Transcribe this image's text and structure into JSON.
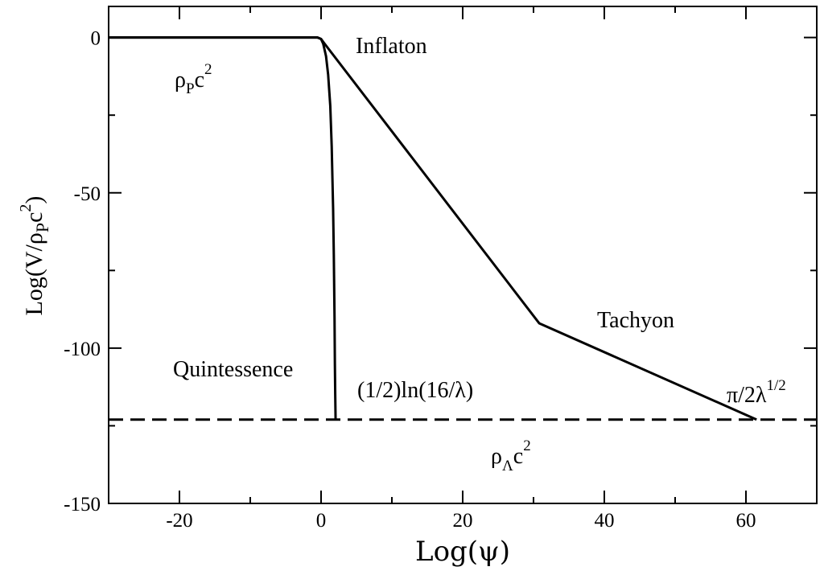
{
  "chart_data": {
    "type": "line",
    "xlabel": "Log(ψ)",
    "ylabel": {
      "base": "Log(V/ρ",
      "sub": "P",
      "mid": "c",
      "sup": "2",
      "end": ")"
    },
    "xlim": [
      -30,
      70
    ],
    "ylim": [
      -150,
      10
    ],
    "xticks": [
      -20,
      0,
      20,
      40,
      60
    ],
    "yticks": [
      0,
      -50,
      -100,
      -150
    ],
    "xtick_labels": [
      "-20",
      "0",
      "20",
      "40",
      "60"
    ],
    "ytick_labels": [
      "0",
      "-50",
      "-100",
      "-150"
    ],
    "grid": false,
    "series": [
      {
        "style": "solid",
        "x": [
          -30,
          -0.5,
          0,
          0.3,
          0.7,
          1.0,
          1.3,
          1.5,
          1.7,
          1.8,
          1.9,
          1.95,
          2.0,
          2.05
        ],
        "y": [
          0,
          0,
          -0.5,
          -2,
          -6,
          -12,
          -22,
          -35,
          -55,
          -70,
          -90,
          -105,
          -115,
          -123
        ]
      },
      {
        "style": "solid",
        "x": [
          -30,
          -0.5,
          0,
          0.5,
          30.8,
          61.5
        ],
        "y": [
          0,
          0,
          -0.5,
          -2,
          -92,
          -123
        ]
      },
      {
        "style": "dashed",
        "x": [
          -30,
          70
        ],
        "y": [
          -123,
          -123
        ]
      }
    ],
    "annotations": {
      "inflaton": "Inflaton",
      "tachyon": "Tachyon",
      "quintessence": "Quintessence",
      "ln_label": "(1/2)ln(16/λ)",
      "pi_label": {
        "base": "π/2λ",
        "sup": "1/2"
      },
      "rho_p": {
        "base": "ρ",
        "sub": "P",
        "mid": "c",
        "sup": "2"
      },
      "rho_lambda": {
        "base": "ρ",
        "sub": "Λ",
        "mid": "c",
        "sup": "2"
      }
    }
  }
}
